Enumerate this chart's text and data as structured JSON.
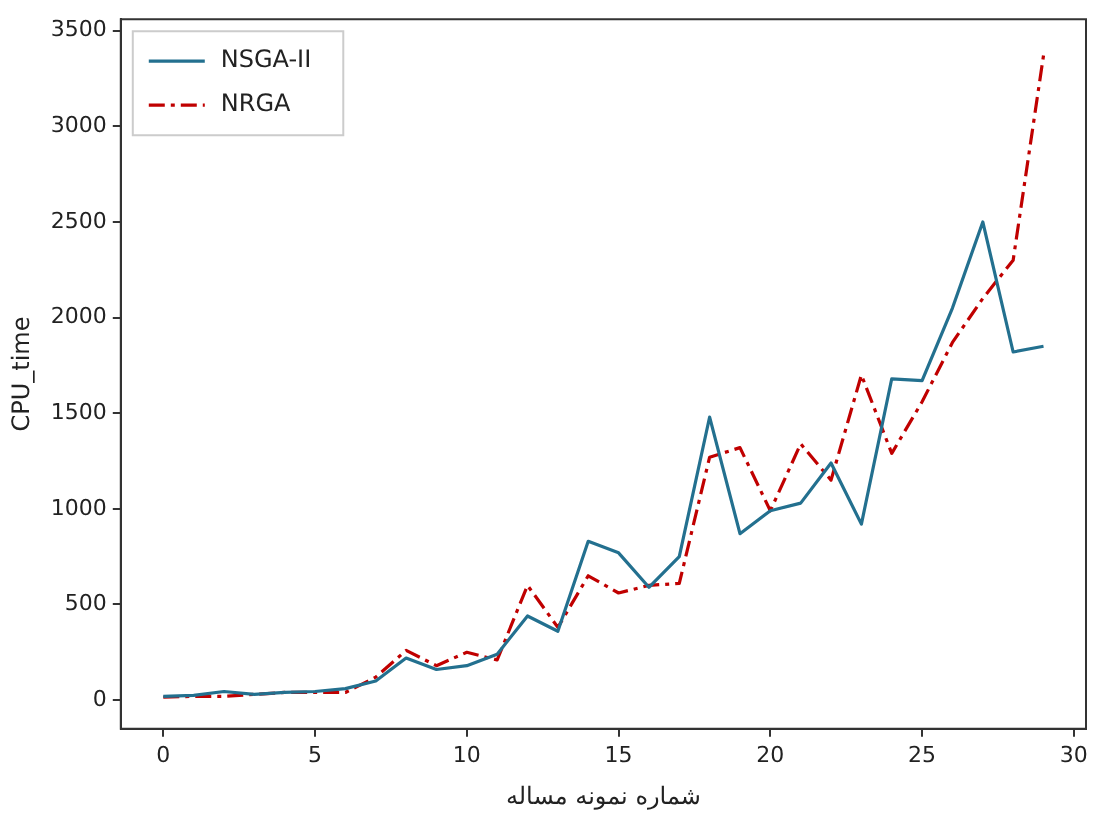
{
  "chart_data": {
    "type": "line",
    "xlabel": "شماره نمونه مساله",
    "ylabel": "CPU_time",
    "x": [
      0,
      1,
      2,
      3,
      4,
      5,
      6,
      7,
      8,
      9,
      10,
      11,
      12,
      13,
      14,
      15,
      16,
      17,
      18,
      19,
      20,
      21,
      22,
      23,
      24,
      25,
      26,
      27,
      28,
      29
    ],
    "series": [
      {
        "name": "NSGA-II",
        "color": "#23708f",
        "line_style": "solid",
        "values": [
          20,
          25,
          45,
          30,
          40,
          45,
          60,
          100,
          220,
          160,
          180,
          240,
          440,
          360,
          830,
          770,
          590,
          750,
          1480,
          870,
          990,
          1030,
          1240,
          920,
          1680,
          1670,
          2050,
          2500,
          1820,
          1850
        ]
      },
      {
        "name": "NRGA",
        "color": "#c00000",
        "line_style": "dashdot",
        "values": [
          15,
          20,
          20,
          30,
          40,
          40,
          40,
          120,
          260,
          180,
          250,
          210,
          600,
          380,
          650,
          560,
          600,
          610,
          1270,
          1320,
          990,
          1340,
          1150,
          1700,
          1290,
          1560,
          1870,
          2100,
          2300,
          3370
        ]
      }
    ],
    "xlim": [
      -1.4,
      30.4
    ],
    "ylim": [
      -150,
      3560
    ],
    "xticks": [
      0,
      5,
      10,
      15,
      20,
      25,
      30
    ],
    "yticks": [
      0,
      500,
      1000,
      1500,
      2000,
      2500,
      3000,
      3500
    ],
    "grid": false,
    "legend": "top left",
    "marker": "none"
  }
}
